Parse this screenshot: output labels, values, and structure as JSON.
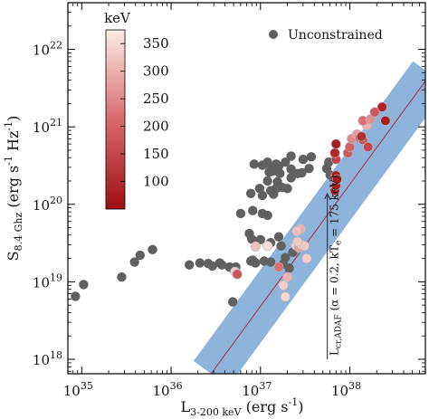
{
  "chart_data": {
    "type": "scatter",
    "x_scale": "log",
    "y_scale": "log",
    "xlim": [
      7e+34,
      7e+38
    ],
    "ylim": [
      6.5e+17,
      4e+22
    ],
    "xlabel": {
      "base": "L",
      "sub": "3-200 keV",
      "unit": "(erg s",
      "sup": "-1",
      "close": ")"
    },
    "ylabel": {
      "base": "S",
      "sub": "8.4 Ghz",
      "unit": "(erg s",
      "sup1": "-1",
      "mid": " Hz",
      "sup2": "-1",
      "close": ")"
    },
    "x_ticks": [
      {
        "value": 1e+35,
        "base": "10",
        "exp": "35"
      },
      {
        "value": 1e+36,
        "base": "10",
        "exp": "36"
      },
      {
        "value": 1e+37,
        "base": "10",
        "exp": "37"
      },
      {
        "value": 1e+38,
        "base": "10",
        "exp": "38"
      }
    ],
    "y_ticks": [
      {
        "value": 1e+18,
        "base": "10",
        "exp": "18"
      },
      {
        "value": 1e+19,
        "base": "10",
        "exp": "19"
      },
      {
        "value": 1e+20,
        "base": "10",
        "exp": "20"
      },
      {
        "value": 1e+21,
        "base": "10",
        "exp": "21"
      },
      {
        "value": 1e+22,
        "base": "10",
        "exp": "22"
      }
    ],
    "legend": {
      "label": "Unconstrained",
      "color": "#606060",
      "placement": "top-right"
    },
    "colorbar": {
      "title": "keV",
      "range": [
        50,
        375
      ],
      "ticks": [
        100,
        150,
        200,
        250,
        300,
        350
      ],
      "color_low": "#9e0d12",
      "color_mid": "#d96a6e",
      "color_high": "#fbece6",
      "placement": "top-left"
    },
    "relation_line": {
      "x": [
        2.8e+36,
        8e+38
      ],
      "y": [
        6.5e+17,
        4.8e+21
      ],
      "band_dex": 0.28,
      "line_color": "#b02a3c",
      "band_color": "#7aa7d6"
    },
    "annotation": {
      "text_parts": [
        "L",
        "cr,ADAF",
        " (α = 0.2, kT",
        "e",
        " = 175 keV)"
      ],
      "arrow_from": [
        5.6e+37,
        1e+18
      ],
      "arrow_to": [
        5.6e+37,
        1.3e+20
      ]
    },
    "series": [
      {
        "name": "Unconstrained",
        "color": "#606060",
        "points": [
          [
            8.5e+34,
            6.5e+18
          ],
          [
            1.05e+35,
            9.2e+18
          ],
          [
            2.8e+35,
            1.15e+19
          ],
          [
            3.9e+35,
            1.8e+19
          ],
          [
            4.5e+35,
            2.2e+19
          ],
          [
            6.2e+35,
            2.6e+19
          ],
          [
            1.6e+36,
            1.65e+19
          ],
          [
            2.1e+36,
            1.75e+19
          ],
          [
            2.6e+36,
            1.72e+19
          ],
          [
            2.9e+36,
            1.6e+19
          ],
          [
            3.5e+36,
            1.75e+19
          ],
          [
            3.7e+36,
            1.65e+19
          ],
          [
            4.5e+36,
            1.55e+19
          ],
          [
            5e+36,
            1.45e+19
          ],
          [
            5.3e+36,
            1.55e+19
          ],
          [
            4.9e+36,
            5.5e+18
          ],
          [
            7.8e+36,
            1.85e+19
          ],
          [
            8.2e+36,
            1.9e+19
          ],
          [
            8.8e+36,
            1.75e+19
          ],
          [
            1.1e+37,
            1.85e+19
          ],
          [
            1.3e+37,
            1.8e+19
          ],
          [
            1.6e+37,
            1.55e+19
          ],
          [
            1.8e+37,
            1.7e+19
          ],
          [
            2.1e+37,
            1.5e+19
          ],
          [
            2.3e+37,
            2.4e+19
          ],
          [
            1.9e+37,
            2.05e+19
          ],
          [
            7.5e+36,
            4.2e+19
          ],
          [
            8e+36,
            3.55e+19
          ],
          [
            1e+37,
            3.5e+19
          ],
          [
            1.3e+37,
            3.2e+19
          ],
          [
            1.7e+37,
            2.9e+19
          ],
          [
            1.6e+37,
            3.8e+19
          ],
          [
            6e+36,
            7.6e+19
          ],
          [
            8.2e+36,
            8.3e+19
          ],
          [
            1.05e+37,
            7.6e+19
          ],
          [
            1.2e+37,
            7.2e+19
          ],
          [
            7.8e+36,
            1.38e+20
          ],
          [
            1.05e+37,
            1.3e+20
          ],
          [
            1.3e+37,
            1.5e+20
          ],
          [
            1.4e+37,
            1.35e+20
          ],
          [
            9.8e+36,
            1.6e+20
          ],
          [
            1.2e+37,
            2e+20
          ],
          [
            1.5e+37,
            1.6e+20
          ],
          [
            1.55e+37,
            1.95e+20
          ],
          [
            1.75e+37,
            1.65e+20
          ],
          [
            1.65e+37,
            2.5e+20
          ],
          [
            2e+37,
            1.6e+20
          ],
          [
            2.2e+37,
            2.2e+20
          ],
          [
            2.2e+37,
            2.85e+20
          ],
          [
            2.6e+37,
            2.5e+20
          ],
          [
            2.9e+37,
            2.55e+20
          ],
          [
            3.5e+37,
            2.9e+20
          ],
          [
            3e+37,
            3.8e+20
          ],
          [
            3.7e+37,
            4.1e+20
          ],
          [
            2.2e+37,
            4.2e+20
          ],
          [
            1.9e+37,
            3.5e+20
          ],
          [
            1.6e+37,
            3.1e+20
          ],
          [
            1.4e+37,
            2.7e+20
          ],
          [
            1.5e+37,
            3.3e+20
          ],
          [
            1.25e+37,
            2.6e+20
          ],
          [
            1.3e+37,
            3.1e+20
          ],
          [
            1.2e+37,
            3.5e+20
          ],
          [
            1.05e+37,
            3.2e+20
          ],
          [
            8.5e+36,
            3.3e+20
          ],
          [
            5.5e+37,
            2.9e+20
          ],
          [
            6e+37,
            2.4e+20
          ],
          [
            5.8e+37,
            3.5e+20
          ]
        ]
      },
      {
        "name": "",
        "color_by": "kT_e",
        "points": [
          [
            5.2e+36,
            1.35e+19,
            340
          ],
          [
            5.5e+36,
            1.25e+19,
            180
          ],
          [
            8.8e+36,
            2.85e+19,
            320
          ],
          [
            1.2e+37,
            2.9e+19,
            360
          ],
          [
            1.8e+37,
            9e+18,
            340
          ],
          [
            1.9e+37,
            6.4e+18,
            350
          ],
          [
            1.6e+37,
            1.55e+19,
            220
          ],
          [
            2e+37,
            1.15e+19,
            300
          ],
          [
            2.5e+37,
            2.95e+19,
            340
          ],
          [
            2.7e+37,
            2.75e+19,
            280
          ],
          [
            2.9e+37,
            3e+19,
            350
          ],
          [
            3.1e+37,
            2.9e+19,
            330
          ],
          [
            2.6e+37,
            3.3e+19,
            330
          ],
          [
            3.3e+37,
            2e+19,
            340
          ],
          [
            2.8e+37,
            4.8e+19,
            300
          ],
          [
            2.55e+37,
            4.5e+19,
            320
          ],
          [
            6.8e+37,
            1.5e+20,
            80
          ],
          [
            7e+37,
            1.75e+20,
            80
          ],
          [
            6.8e+37,
            2.2e+20,
            90
          ],
          [
            7e+37,
            2.35e+20,
            70
          ],
          [
            7.2e+37,
            2.1e+20,
            75
          ],
          [
            7e+37,
            3.8e+20,
            150
          ],
          [
            6.8e+37,
            4.6e+20,
            90
          ],
          [
            7e+37,
            6e+20,
            80
          ],
          [
            9.5e+37,
            4.6e+20,
            180
          ],
          [
            1e+38,
            5.5e+20,
            200
          ],
          [
            1.05e+38,
            7e+20,
            250
          ],
          [
            1.2e+38,
            8e+20,
            280
          ],
          [
            1.3e+38,
            7.2e+20,
            190
          ],
          [
            1.4e+38,
            6.8e+20,
            170
          ],
          [
            1.35e+38,
            7.5e+20,
            110
          ],
          [
            1.55e+38,
            1.05e+21,
            300
          ],
          [
            1.4e+38,
            1.2e+21,
            220
          ],
          [
            1.7e+38,
            1.25e+21,
            260
          ],
          [
            1.9e+38,
            1.55e+21,
            180
          ],
          [
            2.3e+38,
            1.8e+21,
            90
          ],
          [
            2.5e+38,
            1.2e+21,
            80
          ],
          [
            1.6e+38,
            5.5e+20,
            150
          ]
        ]
      }
    ]
  }
}
